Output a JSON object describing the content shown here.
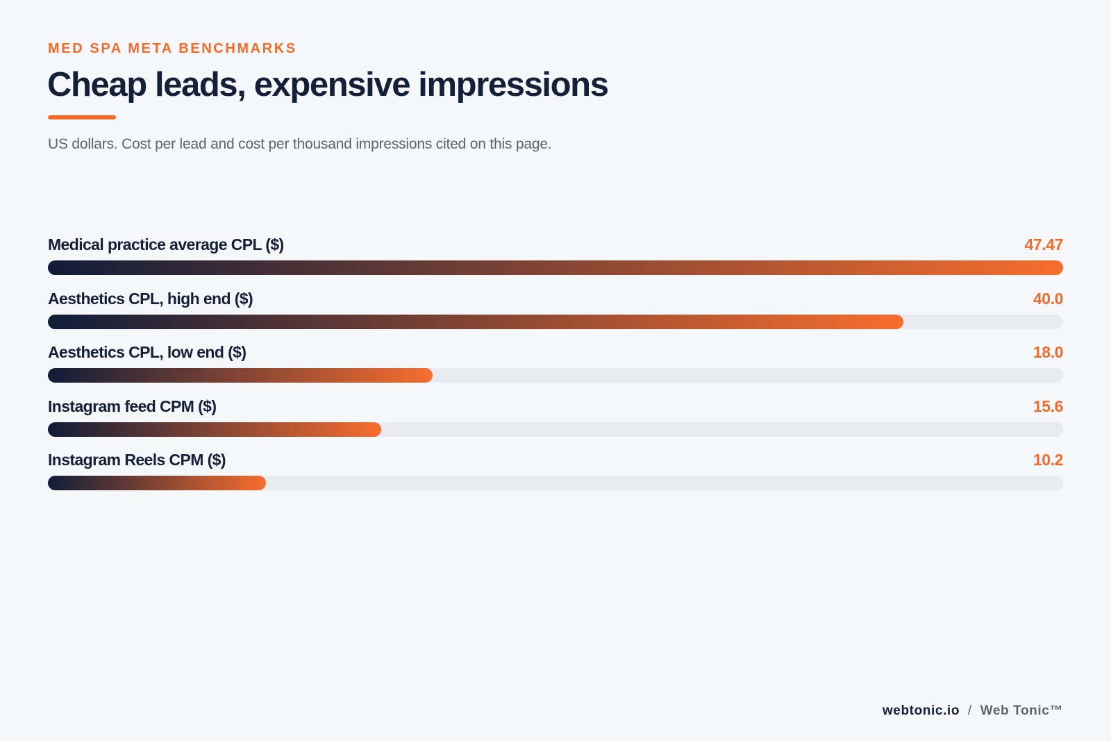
{
  "header": {
    "eyebrow": "MED SPA META BENCHMARKS",
    "title": "Cheap leads, expensive impressions",
    "subtitle": "US dollars. Cost per lead and cost per thousand impressions cited on this page."
  },
  "colors": {
    "accent": "#f26b2a",
    "navy": "#141f38",
    "bar_start": "#101c38",
    "bar_end": "#f76d2e",
    "track": "#e8eaef",
    "background": "#f6f7f9"
  },
  "chart_data": {
    "type": "bar",
    "orientation": "horizontal",
    "categories": [
      "Medical practice average CPL ($)",
      "Aesthetics CPL, high end ($)",
      "Aesthetics CPL, low end ($)",
      "Instagram feed CPM ($)",
      "Instagram Reels CPM ($)"
    ],
    "values": [
      47.47,
      40.0,
      18.0,
      15.6,
      10.2
    ],
    "value_labels": [
      "47.47",
      "40.0",
      "18.0",
      "15.6",
      "10.2"
    ],
    "xlim": [
      0,
      47.47
    ],
    "grid": false,
    "legend": "none"
  },
  "footer": {
    "domain": "webtonic.io",
    "separator": "/",
    "brand": "Web Tonic™"
  }
}
